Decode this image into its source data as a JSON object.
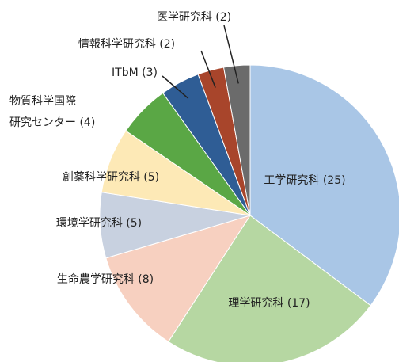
{
  "chart_data": {
    "type": "pie",
    "categories": [
      "工学研究科 (25)",
      "理学研究科 (17)",
      "生命農学研究科 (8)",
      "環境学研究科 (5)",
      "創薬科学研究科 (5)",
      "物質科学国際\n研究センター (4)",
      "ITbM (3)",
      "情報科学研究科 (2)",
      "医学研究科 (2)"
    ],
    "values": [
      25,
      17,
      8,
      5,
      5,
      4,
      3,
      2,
      2
    ],
    "colors": [
      "#a9c6e6",
      "#b6d7a2",
      "#f7d0c0",
      "#c8d1e0",
      "#fde9b6",
      "#5aa745",
      "#2f5d95",
      "#a8452b",
      "#6b6b6b"
    ]
  }
}
